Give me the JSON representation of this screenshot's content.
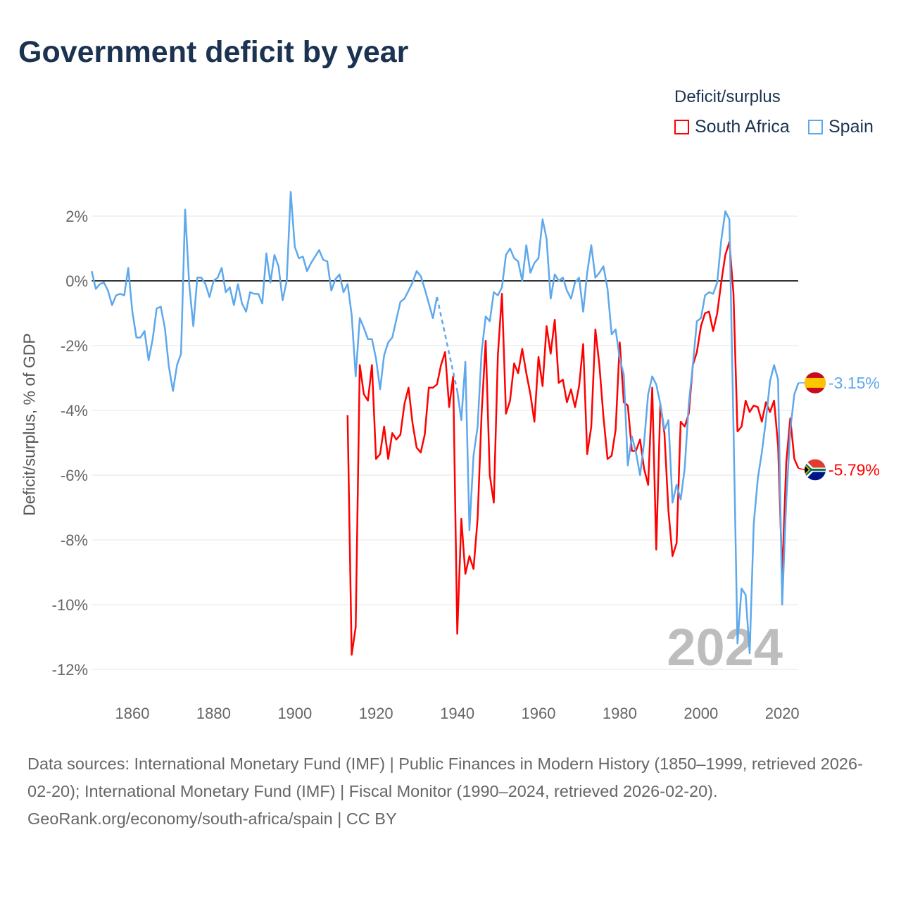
{
  "title": "Government deficit by year",
  "legend": {
    "title": "Deficit/surplus",
    "items": [
      {
        "label": "South Africa",
        "color": "#ff0000"
      },
      {
        "label": "Spain",
        "color": "#5ea8ec"
      }
    ]
  },
  "year_label": "2024",
  "footer": {
    "sources": "Data sources: International Monetary Fund (IMF) | Public Finances in Modern History (1850–1999, retrieved 2026-02-20); International Monetary Fund (IMF) | Fiscal Monitor (1990–2024, retrieved 2026-02-20).",
    "credit": "GeoRank.org/economy/south-africa/spain | CC BY"
  },
  "chart_data": {
    "type": "line",
    "ylabel": "Deficit/surplus, % of GDP",
    "xlabel": "",
    "xlim": [
      1850,
      2024
    ],
    "ylim": [
      -12.5,
      2.8
    ],
    "x_ticks": [
      1860,
      1880,
      1900,
      1920,
      1940,
      1960,
      1980,
      2000,
      2020
    ],
    "y_ticks": [
      2,
      0,
      -2,
      -4,
      -6,
      -8,
      -10,
      -12
    ],
    "y_tick_labels": [
      "2%",
      "0%",
      "-2%",
      "-4%",
      "-6%",
      "-8%",
      "-10%",
      "-12%"
    ],
    "grid": true,
    "legend_position": "top-right",
    "series": [
      {
        "name": "Spain",
        "color": "#5ea8ec",
        "start_year": 1850,
        "end_label": "-3.15%",
        "flag": "spain",
        "values": [
          0.3,
          -0.25,
          -0.1,
          -0.05,
          -0.3,
          -0.75,
          -0.45,
          -0.4,
          -0.45,
          0.4,
          -0.95,
          -1.75,
          -1.75,
          -1.55,
          -2.45,
          -1.8,
          -0.85,
          -0.8,
          -1.45,
          -2.65,
          -3.4,
          -2.6,
          -2.25,
          2.2,
          -0.1,
          -1.4,
          0.1,
          0.1,
          -0.1,
          -0.5,
          0.0,
          0.1,
          0.4,
          -0.35,
          -0.2,
          -0.75,
          -0.1,
          -0.7,
          -0.95,
          -0.35,
          -0.4,
          -0.4,
          -0.7,
          0.85,
          -0.05,
          0.8,
          0.45,
          -0.6,
          0.0,
          2.75,
          1.05,
          0.7,
          0.75,
          0.3,
          0.55,
          0.75,
          0.95,
          0.65,
          0.6,
          -0.3,
          0.05,
          0.2,
          -0.35,
          -0.1,
          -1.05,
          -2.95,
          -1.15,
          -1.45,
          -1.8,
          -1.8,
          -2.4,
          -3.35,
          -2.3,
          -1.9,
          -1.75,
          -1.2,
          -0.65,
          -0.55,
          -0.3,
          -0.05,
          0.3,
          0.15,
          -0.25,
          -0.7,
          -1.15,
          -0.5,
          null,
          null,
          null,
          null,
          -3.4,
          -4.3,
          -2.5,
          -7.7,
          -5.4,
          -4.5,
          -2.2,
          -1.1,
          -1.25,
          -0.35,
          -0.45,
          -0.2,
          0.8,
          1.0,
          0.7,
          0.6,
          0.0,
          1.1,
          0.25,
          0.55,
          0.7,
          1.9,
          1.3,
          -0.55,
          0.2,
          0.0,
          0.1,
          -0.3,
          -0.55,
          -0.05,
          0.1,
          -0.95,
          0.25,
          1.1,
          0.1,
          0.25,
          0.45,
          -0.25,
          -1.65,
          -1.5,
          -2.4,
          -2.9,
          -5.7,
          -4.8,
          -5.3,
          -6.0,
          -5.0,
          -3.5,
          -2.95,
          -3.2,
          -3.8,
          -4.6,
          -4.3,
          -6.85,
          -6.3,
          -6.75,
          -5.8,
          -3.8,
          -2.6,
          -1.25,
          -1.15,
          -0.45,
          -0.35,
          -0.4,
          -0.05,
          1.25,
          2.15,
          1.9,
          -4.5,
          -11.2,
          -9.5,
          -9.7,
          -11.5,
          -7.5,
          -6.1,
          -5.3,
          -4.3,
          -3.1,
          -2.6,
          -3.05,
          -10.0,
          -6.8,
          -4.6,
          -3.5,
          -3.15
        ]
      },
      {
        "name": "South Africa",
        "color": "#ff0000",
        "start_year": 1913,
        "end_label": "-5.79%",
        "flag": "south-africa",
        "values": [
          -4.15,
          -11.55,
          -10.7,
          -2.6,
          -3.5,
          -3.7,
          -2.6,
          -5.5,
          -5.35,
          -4.5,
          -5.5,
          -4.7,
          -4.9,
          -4.75,
          -3.8,
          -3.3,
          -4.4,
          -5.15,
          -5.3,
          -4.75,
          -3.3,
          -3.3,
          -3.2,
          -2.6,
          -2.2,
          -3.9,
          -2.95,
          -10.9,
          -7.35,
          -9.05,
          -8.5,
          -8.9,
          -7.35,
          -4.1,
          -1.85,
          -6.0,
          -6.85,
          -2.3,
          -0.4,
          -4.1,
          -3.7,
          -2.55,
          -2.85,
          -2.1,
          -2.85,
          -3.5,
          -4.35,
          -2.35,
          -3.25,
          -1.4,
          -2.25,
          -1.2,
          -3.15,
          -3.05,
          -3.75,
          -3.35,
          -3.9,
          -3.25,
          -1.95,
          -5.35,
          -4.5,
          -1.5,
          -2.6,
          -4.2,
          -5.5,
          -5.4,
          -4.6,
          -1.9,
          -3.75,
          -3.85,
          -5.25,
          -5.25,
          -4.9,
          -5.8,
          -6.3,
          -3.3,
          -8.3,
          -3.8,
          -4.7,
          -7.1,
          -8.5,
          -8.1,
          -4.35,
          -4.5,
          -4.1,
          -2.6,
          -2.2,
          -1.4,
          -1.0,
          -0.95,
          -1.55,
          -1.0,
          -0.05,
          0.8,
          1.2,
          -0.4,
          -4.65,
          -4.5,
          -3.7,
          -4.05,
          -3.85,
          -3.9,
          -4.35,
          -3.75,
          -4.05,
          -3.7,
          -5.1,
          -9.1,
          -5.6,
          -4.25,
          -5.5,
          -5.79
        ]
      }
    ]
  }
}
